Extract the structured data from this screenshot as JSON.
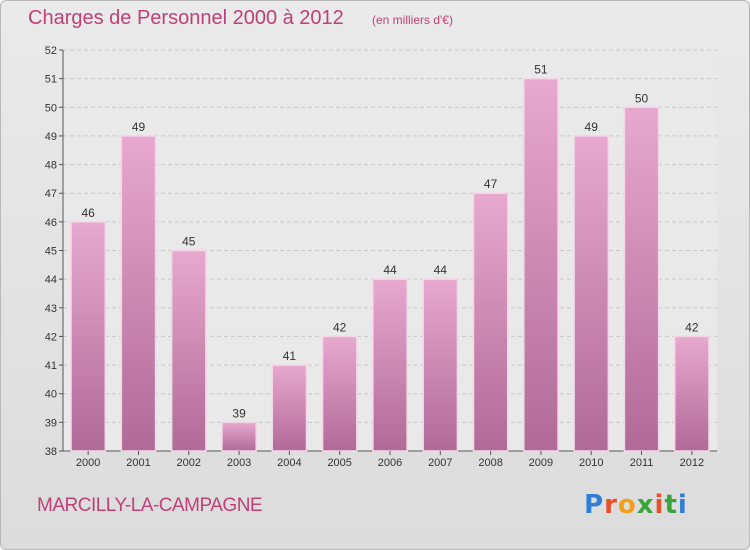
{
  "header": {
    "title": "Charges de Personnel 2000 à 2012",
    "subtitle": "(en milliers d'€)"
  },
  "footer": {
    "commune": "MARCILLY-LA-CAMPAGNE",
    "logo_text": "Proxiti",
    "logo_colors": [
      "#2f7fd6",
      "#e8502a",
      "#f2a01a",
      "#3aa63a",
      "#e8502a",
      "#3aa63a",
      "#2f7fd6"
    ]
  },
  "colors": {
    "accent": "#c0407a",
    "bar_top": "#e7a9cd",
    "bar_bottom": "#b06a98",
    "bar_border": "#f4d6e7",
    "grid": "#c8c8c8",
    "plot_bg": "#e9e9e9"
  },
  "chart_data": {
    "type": "bar",
    "title": "Charges de Personnel 2000 à 2012",
    "subtitle": "(en milliers d'€)",
    "xlabel": "",
    "ylabel": "",
    "categories": [
      "2000",
      "2001",
      "2002",
      "2003",
      "2004",
      "2005",
      "2006",
      "2007",
      "2008",
      "2009",
      "2010",
      "2011",
      "2012"
    ],
    "values": [
      46,
      49,
      45,
      39,
      41,
      42,
      44,
      44,
      47,
      51,
      49,
      50,
      42
    ],
    "ylim": [
      38,
      52
    ],
    "yticks": [
      38,
      39,
      40,
      41,
      42,
      43,
      44,
      45,
      46,
      47,
      48,
      49,
      50,
      51,
      52
    ],
    "grid": true,
    "data_labels": true
  }
}
